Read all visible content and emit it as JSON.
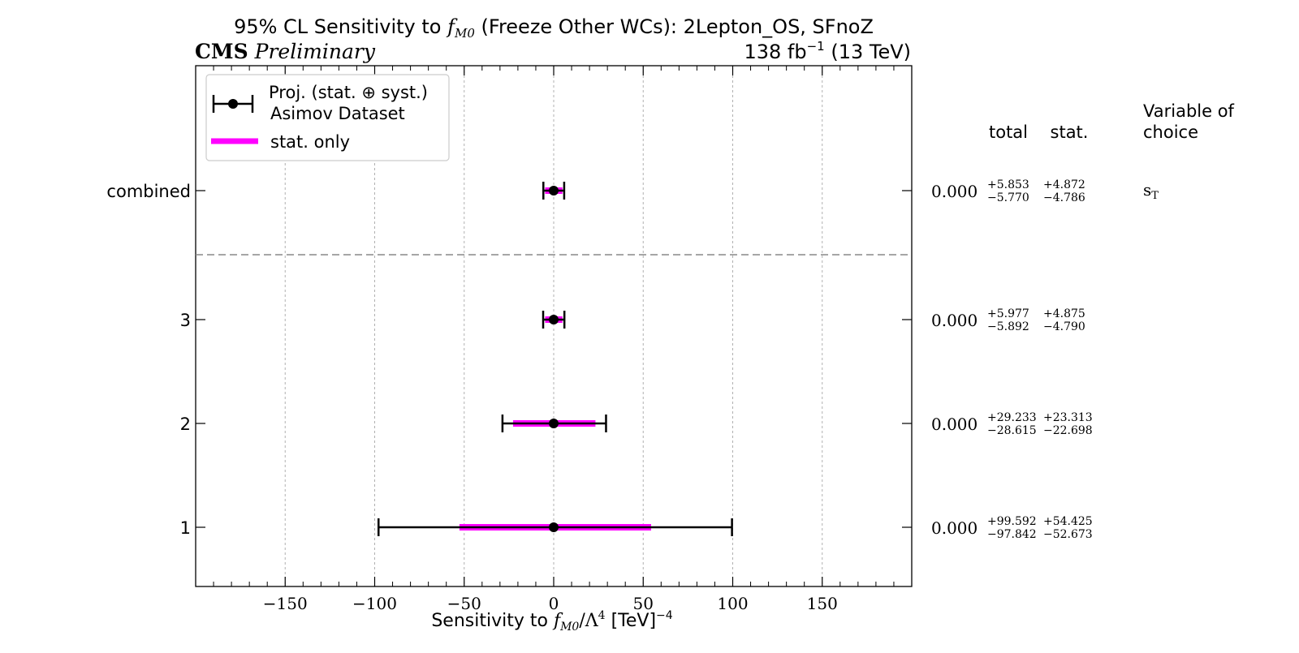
{
  "title": {
    "prefix": "95% CL Sensitivity to ",
    "var_main": "f",
    "var_sub": "M0",
    "suffix": " (Freeze Other WCs): 2Lepton_OS, SFnoZ"
  },
  "experiment": {
    "name": "CMS",
    "status": "Preliminary"
  },
  "lumi": {
    "value": "138 fb",
    "exp": "−1",
    "energy": " (13 TeV)"
  },
  "legend": {
    "location": "top-left",
    "entries": [
      {
        "label": "Proj. (stat. ⊕ syst.)",
        "label2": "Asimov Dataset",
        "color": "#000000"
      },
      {
        "label": "stat. only",
        "color": "#ff00ff"
      }
    ]
  },
  "columns": {
    "total": "total",
    "stat": "stat.",
    "variable_line1": "Variable of",
    "variable_line2": "choice"
  },
  "xlabel": {
    "prefix": "Sensitivity to ",
    "var_main": "f",
    "var_sub": "M0",
    "mid": "/Λ",
    "mid_sup": "4",
    "unit": " [TeV]",
    "unit_sup": "−4"
  },
  "chart_data": {
    "type": "errorbar",
    "orientation": "horizontal",
    "xlim": [
      -200,
      200
    ],
    "xticks": [
      -150,
      -100,
      -50,
      0,
      50,
      100,
      150
    ],
    "xtick_labels": [
      "−150",
      "−100",
      "−50",
      "0",
      "50",
      "100",
      "150"
    ],
    "grid": "x",
    "separator_after": "combined",
    "colors": {
      "total": "#000000",
      "stat": "#ff00ff",
      "separator": "#888888"
    },
    "rows": [
      {
        "label": "combined",
        "central": 0.0,
        "central_text": "0.000",
        "total_up": 5.853,
        "total_dn": 5.77,
        "stat_up": 4.872,
        "stat_dn": 4.786,
        "total_up_text": "+5.853",
        "total_dn_text": "−5.770",
        "stat_up_text": "+4.872",
        "stat_dn_text": "−4.786",
        "variable_main": "s",
        "variable_sub": "T"
      },
      {
        "label": "3",
        "central": 0.0,
        "central_text": "0.000",
        "total_up": 5.977,
        "total_dn": 5.892,
        "stat_up": 4.875,
        "stat_dn": 4.79,
        "total_up_text": "+5.977",
        "total_dn_text": "−5.892",
        "stat_up_text": "+4.875",
        "stat_dn_text": "−4.790"
      },
      {
        "label": "2",
        "central": 0.0,
        "central_text": "0.000",
        "total_up": 29.233,
        "total_dn": 28.615,
        "stat_up": 23.313,
        "stat_dn": 22.698,
        "total_up_text": "+29.233",
        "total_dn_text": "−28.615",
        "stat_up_text": "+23.313",
        "stat_dn_text": "−22.698"
      },
      {
        "label": "1",
        "central": 0.0,
        "central_text": "0.000",
        "total_up": 99.592,
        "total_dn": 97.842,
        "stat_up": 54.425,
        "stat_dn": 52.673,
        "total_up_text": "+99.592",
        "total_dn_text": "−97.842",
        "stat_up_text": "+54.425",
        "stat_dn_text": "−52.673"
      }
    ]
  }
}
